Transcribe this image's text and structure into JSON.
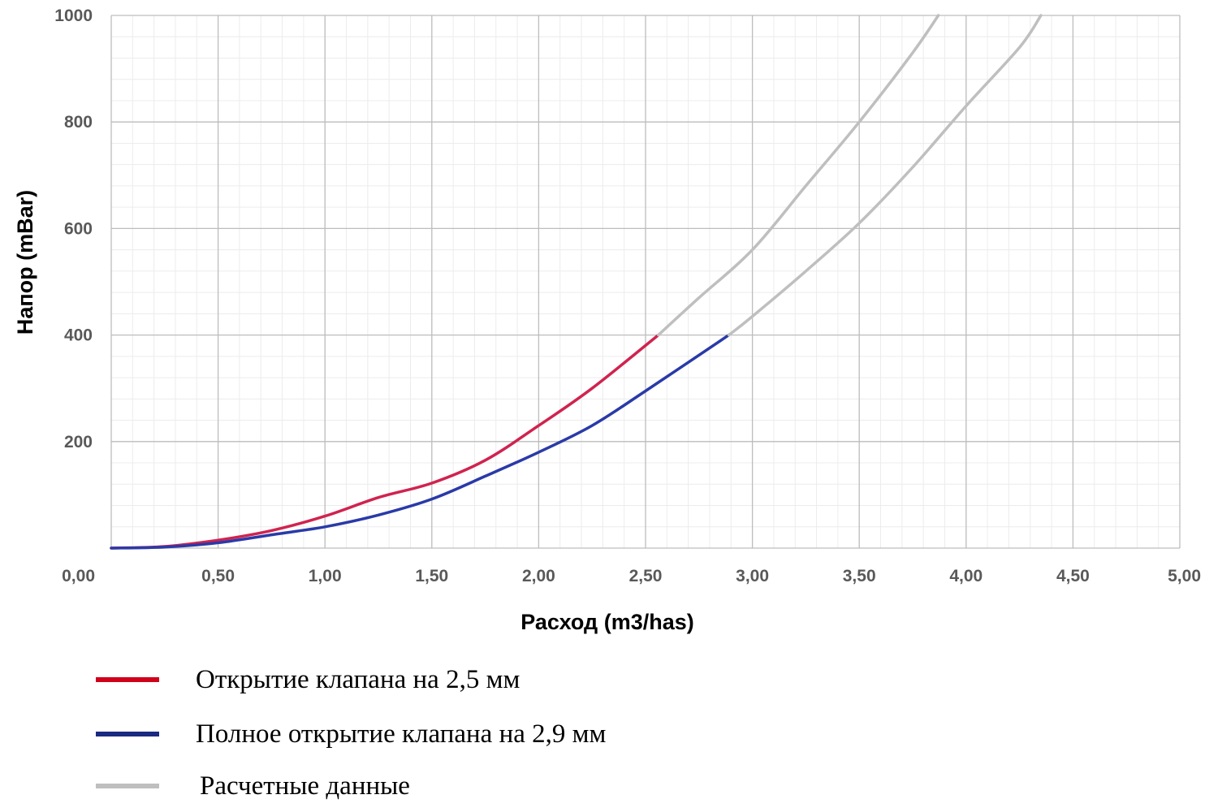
{
  "chart_data": {
    "type": "line",
    "xlabel": "Расход (m3/has)",
    "ylabel": "Напор (mBar)",
    "xlim": [
      0,
      5
    ],
    "ylim": [
      0,
      1000
    ],
    "x_ticks": [
      {
        "value": 0,
        "label": "0,00"
      },
      {
        "value": 0.5,
        "label": "0,50"
      },
      {
        "value": 1,
        "label": "1,00"
      },
      {
        "value": 1.5,
        "label": "1,50"
      },
      {
        "value": 2,
        "label": "2,00"
      },
      {
        "value": 2.5,
        "label": "2,50"
      },
      {
        "value": 3,
        "label": "3,00"
      },
      {
        "value": 3.5,
        "label": "3,50"
      },
      {
        "value": 4,
        "label": "4,00"
      },
      {
        "value": 4.5,
        "label": "4,50"
      },
      {
        "value": 5,
        "label": "5,00"
      }
    ],
    "y_ticks": [
      {
        "value": 200,
        "label": "200"
      },
      {
        "value": 400,
        "label": "400"
      },
      {
        "value": 600,
        "label": "600"
      },
      {
        "value": 800,
        "label": "800"
      },
      {
        "value": 1000,
        "label": "1000"
      }
    ],
    "grid": true,
    "legend_position": "bottom",
    "series": [
      {
        "name": "Открытие клапана на 2,5 мм",
        "color": "#d0234f",
        "legend_color": "#d0021b",
        "x": [
          0,
          0.25,
          0.5,
          0.75,
          1.0,
          1.25,
          1.5,
          1.75,
          2.0,
          2.25,
          2.56
        ],
        "y": [
          0,
          3,
          15,
          33,
          60,
          95,
          122,
          165,
          230,
          300,
          400
        ]
      },
      {
        "name": "Полное открытие клапана на 2,9 мм",
        "color": "#2a3aa8",
        "legend_color": "#1a2a80",
        "x": [
          0,
          0.25,
          0.5,
          0.75,
          1.0,
          1.25,
          1.5,
          1.75,
          2.0,
          2.25,
          2.5,
          2.89
        ],
        "y": [
          0,
          2,
          10,
          25,
          40,
          62,
          92,
          135,
          180,
          230,
          295,
          400
        ]
      },
      {
        "name": "Расчетные данные",
        "color": "#bfbfbf",
        "legend_color": "#bfbfbf",
        "x": [
          2.56,
          2.75,
          3.0,
          3.25,
          3.5,
          3.75,
          3.87
        ],
        "y": [
          400,
          470,
          560,
          680,
          800,
          930,
          1000
        ]
      },
      {
        "name": "",
        "color": "#bfbfbf",
        "x": [
          2.89,
          3.0,
          3.25,
          3.5,
          3.75,
          4.0,
          4.25,
          4.35
        ],
        "y": [
          400,
          435,
          520,
          610,
          715,
          830,
          940,
          1000
        ]
      }
    ]
  }
}
